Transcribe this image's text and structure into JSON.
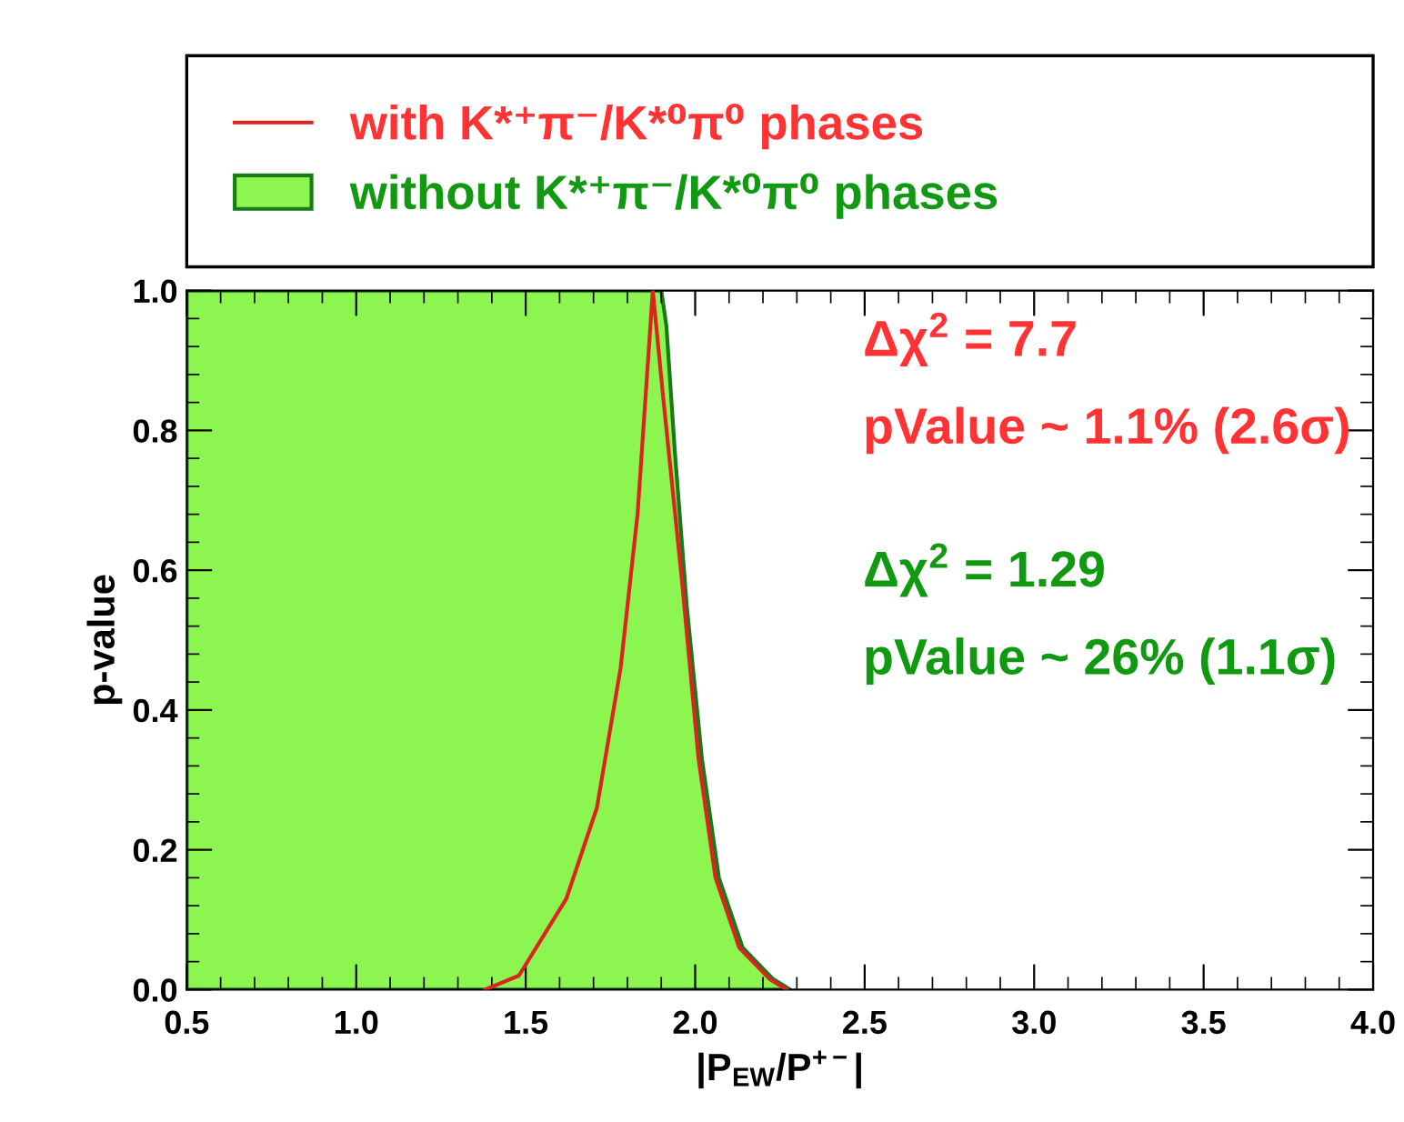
{
  "chart_data": {
    "type": "line",
    "xlabel": "|P$_{EW}$/P$^{+−}$|",
    "ylabel": "p-value",
    "xlim": [
      0.5,
      4.0
    ],
    "ylim": [
      0.0,
      1.0
    ],
    "xticks": [
      {
        "value": 0.5,
        "label": "0.5"
      },
      {
        "value": 1,
        "label": "1.0"
      },
      {
        "value": 1.5,
        "label": "1.5"
      },
      {
        "value": 2,
        "label": "2.0"
      },
      {
        "value": 2.5,
        "label": "2.5"
      },
      {
        "value": 3,
        "label": "3.0"
      },
      {
        "value": 3.5,
        "label": "3.5"
      },
      {
        "value": 4,
        "label": "4.0"
      }
    ],
    "yticks": [
      {
        "value": 0,
        "label": "0.0"
      },
      {
        "value": 0.2,
        "label": "0.2"
      },
      {
        "value": 0.4,
        "label": "0.4"
      },
      {
        "value": 0.6,
        "label": "0.6"
      },
      {
        "value": 0.8,
        "label": "0.8"
      },
      {
        "value": 1,
        "label": "1.0"
      }
    ],
    "grid": false,
    "legend": "top",
    "marker": "none",
    "line_style": "solid",
    "series": [
      {
        "name": "with K*⁺π⁻/K*⁰π⁰ phases",
        "color": "#dd2222",
        "x": [
          1.38,
          1.48,
          1.62,
          1.71,
          1.78,
          1.83,
          1.875,
          1.905,
          1.96,
          2.01,
          2.06,
          2.13,
          2.22,
          2.27
        ],
        "values": [
          0.0,
          0.02,
          0.13,
          0.26,
          0.46,
          0.68,
          1.0,
          0.85,
          0.59,
          0.33,
          0.16,
          0.06,
          0.015,
          0.0
        ]
      },
      {
        "name": "without K*⁺π⁻/K*⁰π⁰ phases",
        "type": "area",
        "color": "#8cf54f",
        "x": [
          0.5,
          1.9,
          1.915,
          1.94,
          1.975,
          2.02,
          2.07,
          2.14,
          2.23,
          2.28
        ],
        "values": [
          1.0,
          1.0,
          0.95,
          0.77,
          0.55,
          0.33,
          0.16,
          0.06,
          0.015,
          0.0
        ]
      }
    ],
    "annotations": [
      "Δχ$^{2}$ = 7.7",
      "pValue ~ 1.1% (2.6σ)",
      "Δχ$^{2}$ = 1.29",
      "pValue ~ 26% (1.1σ)"
    ]
  }
}
